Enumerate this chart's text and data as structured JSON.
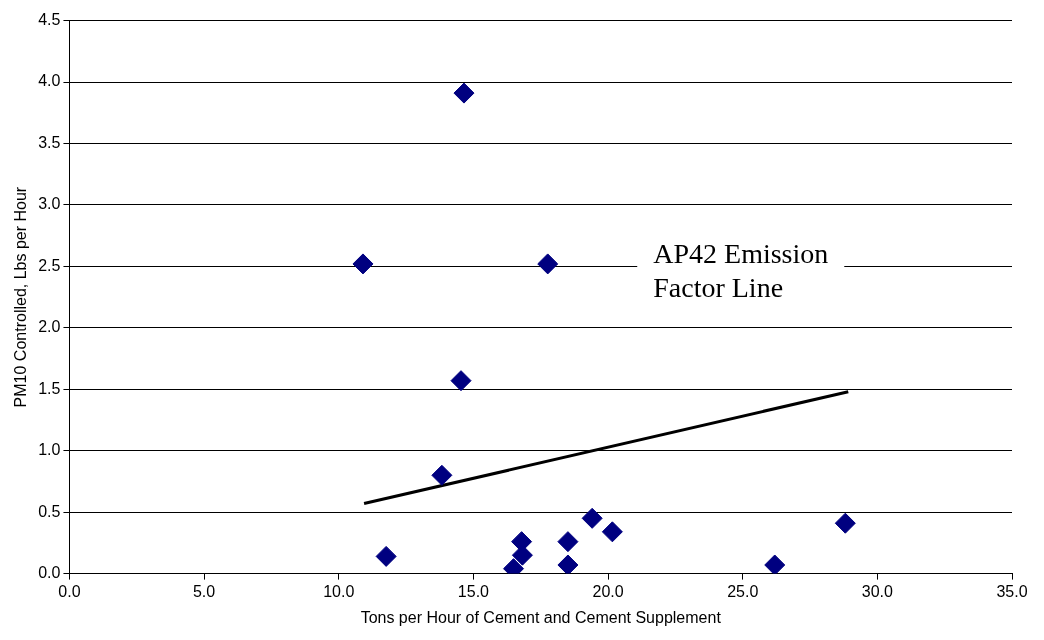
{
  "chart_data": {
    "type": "scatter",
    "xlabel": "Tons per Hour of Cement and Cement Supplement",
    "ylabel": "PM10 Controlled, Lbs per Hour",
    "series": [
      {
        "color": "#000080",
        "marker": "diamond",
        "x": [
          14.65,
          10.9,
          17.76,
          14.54,
          13.83,
          11.76,
          16.49,
          16.79,
          16.82,
          18.51,
          18.51,
          19.41,
          20.16,
          26.19,
          28.81
        ],
        "values": [
          3.91,
          2.52,
          2.52,
          1.57,
          0.8,
          0.14,
          0.04,
          0.26,
          0.15,
          0.26,
          0.07,
          0.45,
          0.34,
          0.07,
          0.41
        ]
      },
      {
        "type": "line",
        "name": "AP42 Emission Factor Line",
        "color": "#000000",
        "marker": "none",
        "line_style": "solid",
        "x": [
          10.94,
          28.92
        ],
        "values": [
          0.57,
          1.48
        ]
      }
    ],
    "xlim": [
      0,
      35
    ],
    "xticks": [
      {
        "value": 0,
        "label": "0.0"
      },
      {
        "value": 5,
        "label": "5.0"
      },
      {
        "value": 10,
        "label": "10.0"
      },
      {
        "value": 15,
        "label": "15.0"
      },
      {
        "value": 20,
        "label": "20.0"
      },
      {
        "value": 25,
        "label": "25.0"
      },
      {
        "value": 30,
        "label": "30.0"
      },
      {
        "value": 35,
        "label": "35.0"
      }
    ],
    "ylim": [
      0,
      4.5
    ],
    "yticks": [
      {
        "value": 0,
        "label": "0.0"
      },
      {
        "value": 0.5,
        "label": "0.5"
      },
      {
        "value": 1,
        "label": "1.0"
      },
      {
        "value": 1.5,
        "label": "1.5"
      },
      {
        "value": 2,
        "label": "2.0"
      },
      {
        "value": 2.5,
        "label": "2.5"
      },
      {
        "value": 3,
        "label": "3.0"
      },
      {
        "value": 3.5,
        "label": "3.5"
      },
      {
        "value": 4,
        "label": "4.0"
      },
      {
        "value": 4.5,
        "label": "4.5"
      }
    ],
    "grid": "y",
    "legend": false
  }
}
